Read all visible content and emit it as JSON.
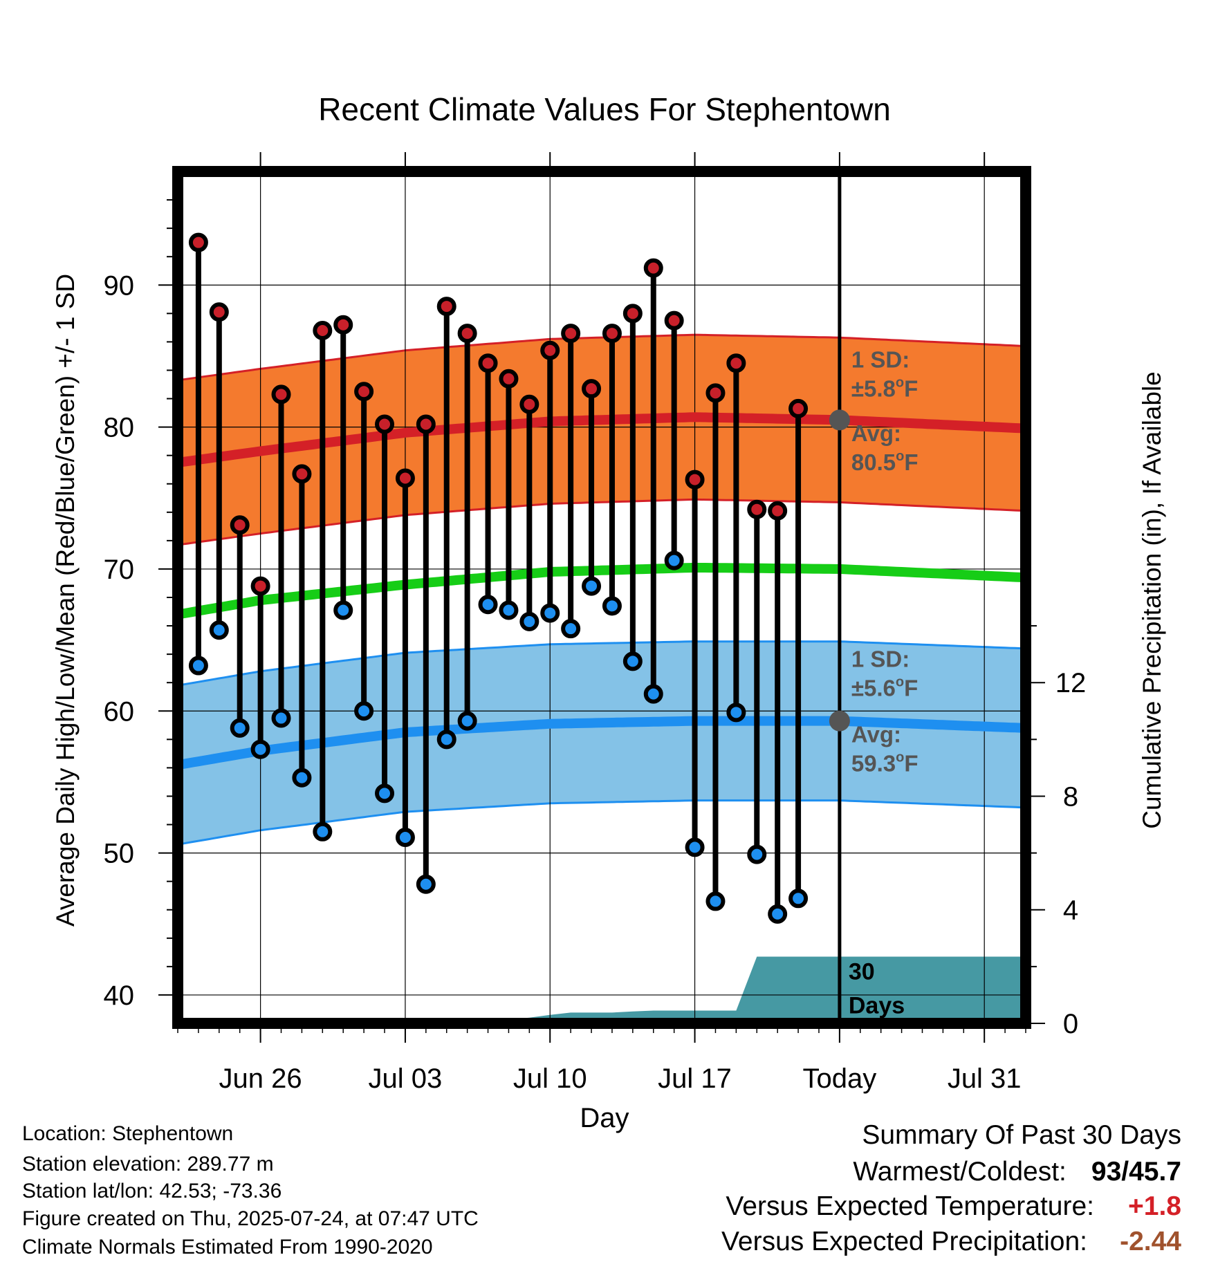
{
  "chart_data": {
    "type": "line",
    "title": "Recent Climate Values For Stephentown",
    "xlabel": "Day",
    "ylabel_left": "Average Daily High/Low/Mean (Red/Blue/Green) +/- 1 SD",
    "ylabel_right": "Cumulative Precipitation (in), If Available",
    "xlim": [
      "2025-06-22",
      "2025-08-02"
    ],
    "ylim_left": [
      38,
      98
    ],
    "ylim_right": [
      0,
      30
    ],
    "x_ticks": [
      {
        "date": "2025-06-26",
        "label": "Jun 26"
      },
      {
        "date": "2025-07-03",
        "label": "Jul 03"
      },
      {
        "date": "2025-07-10",
        "label": "Jul 10"
      },
      {
        "date": "2025-07-17",
        "label": "Jul 17"
      },
      {
        "date": "2025-07-24",
        "label": "Today"
      },
      {
        "date": "2025-07-31",
        "label": "Jul 31"
      }
    ],
    "y_ticks_left": [
      40,
      50,
      60,
      70,
      80,
      90
    ],
    "y_ticks_right": [
      0,
      4,
      8,
      12
    ],
    "grid": true,
    "dates": [
      "2025-06-23",
      "2025-06-24",
      "2025-06-25",
      "2025-06-26",
      "2025-06-27",
      "2025-06-28",
      "2025-06-29",
      "2025-06-30",
      "2025-07-01",
      "2025-07-02",
      "2025-07-03",
      "2025-07-04",
      "2025-07-05",
      "2025-07-06",
      "2025-07-07",
      "2025-07-08",
      "2025-07-09",
      "2025-07-10",
      "2025-07-11",
      "2025-07-12",
      "2025-07-13",
      "2025-07-14",
      "2025-07-15",
      "2025-07-16",
      "2025-07-17",
      "2025-07-18",
      "2025-07-19",
      "2025-07-20",
      "2025-07-21",
      "2025-07-22",
      "2025-07-23"
    ],
    "series": [
      {
        "name": "Daily High",
        "color": "#c8202a",
        "values": [
          93.0,
          88.1,
          73.1,
          68.8,
          82.3,
          76.7,
          86.8,
          87.2,
          82.5,
          80.2,
          76.4,
          80.2,
          88.5,
          86.6,
          84.5,
          83.4,
          81.6,
          85.4,
          86.6,
          82.7,
          86.6,
          88.0,
          91.2,
          87.5,
          76.3,
          82.4,
          84.5,
          74.2,
          74.1,
          81.3,
          null
        ]
      },
      {
        "name": "Daily Low",
        "color": "#1e8ff0",
        "values": [
          63.2,
          65.7,
          58.8,
          57.3,
          59.5,
          55.3,
          51.5,
          67.1,
          60.0,
          54.2,
          51.1,
          47.8,
          58.0,
          59.3,
          67.5,
          67.1,
          66.3,
          66.9,
          65.8,
          68.8,
          67.4,
          63.5,
          61.2,
          70.6,
          50.4,
          46.6,
          59.9,
          49.9,
          45.7,
          46.8,
          null
        ]
      }
    ],
    "normals": {
      "days": [
        "2025-06-22",
        "2025-06-26",
        "2025-07-03",
        "2025-07-10",
        "2025-07-17",
        "2025-07-24",
        "2025-08-02"
      ],
      "high_avg": [
        77.5,
        78.3,
        79.6,
        80.4,
        80.7,
        80.5,
        79.9
      ],
      "high_sd": 5.8,
      "low_avg": [
        56.2,
        57.2,
        58.5,
        59.1,
        59.3,
        59.3,
        58.8
      ],
      "low_sd": 5.6,
      "mean_avg": [
        66.8,
        67.8,
        68.9,
        69.8,
        70.1,
        70.0,
        69.4
      ],
      "high_band_color": "#f47a2e",
      "high_line_color": "#d42027",
      "low_band_color": "#84c2e7",
      "low_line_color": "#1e8ff0",
      "mean_line_color": "#16cd16"
    },
    "precipitation": {
      "color": "#4699a3",
      "dates": [
        "2025-06-22",
        "2025-07-06",
        "2025-07-07",
        "2025-07-08",
        "2025-07-09",
        "2025-07-10",
        "2025-07-11",
        "2025-07-12",
        "2025-07-13",
        "2025-07-14",
        "2025-07-15",
        "2025-07-16",
        "2025-07-17",
        "2025-07-18",
        "2025-07-19",
        "2025-07-20",
        "2025-08-02"
      ],
      "values": [
        0,
        0,
        0.1,
        0.15,
        0.2,
        0.3,
        0.38,
        0.38,
        0.38,
        0.42,
        0.45,
        0.45,
        0.45,
        0.45,
        0.45,
        2.35,
        2.35
      ]
    },
    "annotations": {
      "high_sd": [
        "1 SD:",
        "±5.8",
        "o",
        "F"
      ],
      "high_avg": [
        "Avg:",
        "80.5",
        "o",
        "F"
      ],
      "low_sd": [
        "1 SD:",
        "±5.6",
        "o",
        "F"
      ],
      "low_avg": [
        "Avg:",
        "59.3",
        "o",
        "F"
      ],
      "window": [
        "30",
        "Days"
      ]
    }
  },
  "footer": {
    "location": "Location: Stephentown",
    "elevation": "Station elevation: 289.77 m",
    "latlon": "Station lat/lon: 42.53; -73.36",
    "created": "Figure created on Thu, 2025-07-24, at 07:47 UTC",
    "normals": "Climate Normals Estimated From 1990-2020"
  },
  "summary": {
    "title": "Summary Of Past 30 Days",
    "warmest_coldest_label": "Warmest/Coldest:",
    "warmest_coldest_value": "93/45.7",
    "temp_label": "Versus Expected Temperature:",
    "temp_value": "+1.8",
    "temp_color": "#d42027",
    "precip_label": "Versus Expected Precipitation:",
    "precip_value": "-2.44",
    "precip_color": "#a0522d"
  }
}
